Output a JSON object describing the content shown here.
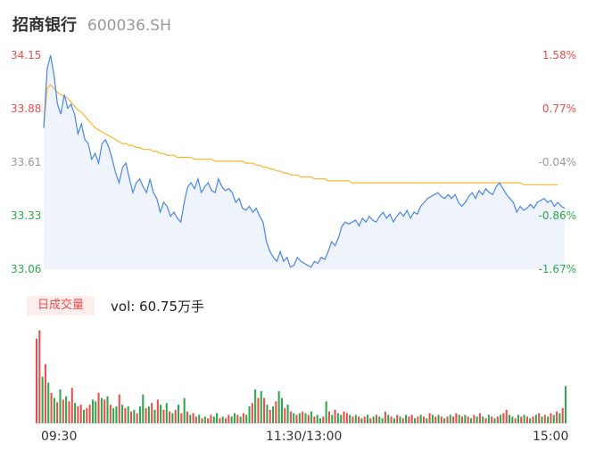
{
  "header": {
    "name": "招商银行",
    "code": "600036.SH"
  },
  "price_labels": [
    "34.15",
    "33.88",
    "33.61",
    "33.33",
    "33.06"
  ],
  "pct_labels": [
    "1.58%",
    "0.77%",
    "-0.04%",
    "-0.86%",
    "-1.67%"
  ],
  "volume": {
    "tag": "日成交量",
    "text": "vol: 60.75万手"
  },
  "time_labels": [
    "09:30",
    "11:30/13:00",
    "15:00"
  ],
  "colors": {
    "price_line": "#4a86e8",
    "avg_line": "#f5b82e",
    "up": "#e94e4e",
    "down": "#2ea84a",
    "flat": "#999999",
    "fill": "#eef3fc"
  },
  "chart_data": [
    {
      "type": "line",
      "title": "",
      "x_range": [
        "09:30",
        "15:00"
      ],
      "ylim": [
        33.06,
        34.15
      ],
      "y2lim": [
        -1.67,
        1.58
      ],
      "y2unit": "%",
      "series": [
        {
          "values": [
            33.78,
            34.08,
            34.15,
            34.05,
            33.9,
            33.85,
            33.95,
            33.88,
            33.9,
            33.85,
            33.75,
            33.8,
            33.72,
            33.7,
            33.62,
            33.65,
            33.6,
            33.7,
            33.72,
            33.68,
            33.62,
            33.55,
            33.5,
            33.58,
            33.6,
            33.52,
            33.45,
            33.5,
            33.52,
            33.48,
            33.45,
            33.52,
            33.45,
            33.42,
            33.35,
            33.4,
            33.38,
            33.33,
            33.35,
            33.32,
            33.3,
            33.4,
            33.48,
            33.5,
            33.47,
            33.52,
            33.45,
            33.48,
            33.5,
            33.46,
            33.45,
            33.52,
            33.48,
            33.46,
            33.47,
            33.45,
            33.4,
            33.42,
            33.37,
            33.36,
            33.38,
            33.35,
            33.37,
            33.33,
            33.3,
            33.2,
            33.15,
            33.12,
            33.1,
            33.15,
            33.1,
            33.12,
            33.07,
            33.08,
            33.12,
            33.1,
            33.09,
            33.08,
            33.07,
            33.1,
            33.09,
            33.12,
            33.11,
            33.15,
            33.2,
            33.18,
            33.22,
            33.28,
            33.3,
            33.29,
            33.3,
            33.31,
            33.28,
            33.32,
            33.3,
            33.33,
            33.31,
            33.3,
            33.33,
            33.35,
            33.32,
            33.34,
            33.3,
            33.33,
            33.35,
            33.33,
            33.36,
            33.32,
            33.35,
            33.34,
            33.38,
            33.4,
            33.42,
            33.43,
            33.44,
            33.45,
            33.43,
            33.42,
            33.44,
            33.42,
            33.44,
            33.4,
            33.38,
            33.4,
            33.43,
            33.45,
            33.42,
            33.46,
            33.44,
            33.47,
            33.45,
            33.44,
            33.48,
            33.5,
            33.47,
            33.44,
            33.42,
            33.4,
            33.35,
            33.38,
            33.36,
            33.37,
            33.39,
            33.37,
            33.4,
            33.41,
            33.42,
            33.4,
            33.41,
            33.38,
            33.4,
            33.38,
            33.37
          ]
        },
        {
          "values": [
            33.78,
            33.98,
            34.0,
            33.98,
            33.96,
            33.95,
            33.94,
            33.93,
            33.91,
            33.89,
            33.87,
            33.86,
            33.84,
            33.82,
            33.8,
            33.78,
            33.77,
            33.76,
            33.75,
            33.74,
            33.73,
            33.72,
            33.71,
            33.7,
            33.7,
            33.69,
            33.69,
            33.68,
            33.68,
            33.67,
            33.67,
            33.67,
            33.66,
            33.66,
            33.65,
            33.65,
            33.64,
            33.64,
            33.64,
            33.63,
            33.63,
            33.63,
            33.63,
            33.63,
            33.62,
            33.62,
            33.62,
            33.62,
            33.62,
            33.62,
            33.61,
            33.61,
            33.61,
            33.61,
            33.61,
            33.61,
            33.61,
            33.61,
            33.61,
            33.6,
            33.6,
            33.6,
            33.59,
            33.59,
            33.58,
            33.58,
            33.57,
            33.57,
            33.56,
            33.56,
            33.55,
            33.55,
            33.54,
            33.54,
            33.54,
            33.53,
            33.53,
            33.53,
            33.53,
            33.52,
            33.52,
            33.52,
            33.52,
            33.51,
            33.51,
            33.51,
            33.51,
            33.51,
            33.51,
            33.51,
            33.5,
            33.5,
            33.5,
            33.5,
            33.5,
            33.5,
            33.5,
            33.5,
            33.5,
            33.5,
            33.5,
            33.5,
            33.5,
            33.5,
            33.5,
            33.5,
            33.5,
            33.5,
            33.5,
            33.5,
            33.5,
            33.5,
            33.5,
            33.5,
            33.5,
            33.5,
            33.5,
            33.5,
            33.5,
            33.5,
            33.5,
            33.5,
            33.5,
            33.5,
            33.5,
            33.5,
            33.5,
            33.5,
            33.5,
            33.5,
            33.5,
            33.5,
            33.5,
            33.5,
            33.5,
            33.5,
            33.5,
            33.5,
            33.5,
            33.5,
            33.49,
            33.49,
            33.49,
            33.49,
            33.49,
            33.49,
            33.49,
            33.49,
            33.49,
            33.49,
            33.49
          ]
        }
      ]
    },
    {
      "type": "bar",
      "title": "",
      "unit": "万手",
      "bars": [
        [
          1.0,
          "up"
        ],
        [
          1.1,
          "up"
        ],
        [
          0.55,
          "down"
        ],
        [
          0.7,
          "up"
        ],
        [
          0.48,
          "down"
        ],
        [
          0.36,
          "up"
        ],
        [
          0.3,
          "down"
        ],
        [
          0.25,
          "up"
        ],
        [
          0.4,
          "down"
        ],
        [
          0.28,
          "up"
        ],
        [
          0.32,
          "down"
        ],
        [
          0.26,
          "up"
        ],
        [
          0.42,
          "up"
        ],
        [
          0.24,
          "down"
        ],
        [
          0.2,
          "up"
        ],
        [
          0.22,
          "up"
        ],
        [
          0.16,
          "down"
        ],
        [
          0.18,
          "up"
        ],
        [
          0.22,
          "up"
        ],
        [
          0.28,
          "down"
        ],
        [
          0.26,
          "down"
        ],
        [
          0.36,
          "up"
        ],
        [
          0.3,
          "down"
        ],
        [
          0.28,
          "up"
        ],
        [
          0.32,
          "down"
        ],
        [
          0.22,
          "up"
        ],
        [
          0.18,
          "down"
        ],
        [
          0.2,
          "down"
        ],
        [
          0.34,
          "up"
        ],
        [
          0.22,
          "down"
        ],
        [
          0.18,
          "up"
        ],
        [
          0.2,
          "down"
        ],
        [
          0.14,
          "up"
        ],
        [
          0.16,
          "down"
        ],
        [
          0.12,
          "up"
        ],
        [
          0.2,
          "down"
        ],
        [
          0.34,
          "down"
        ],
        [
          0.18,
          "up"
        ],
        [
          0.2,
          "down"
        ],
        [
          0.24,
          "up"
        ],
        [
          0.16,
          "down"
        ],
        [
          0.28,
          "up"
        ],
        [
          0.22,
          "down"
        ],
        [
          0.16,
          "up"
        ],
        [
          0.24,
          "down"
        ],
        [
          0.14,
          "up"
        ],
        [
          0.12,
          "down"
        ],
        [
          0.16,
          "up"
        ],
        [
          0.22,
          "down"
        ],
        [
          0.12,
          "up"
        ],
        [
          0.3,
          "down"
        ],
        [
          0.14,
          "up"
        ],
        [
          0.1,
          "down"
        ],
        [
          0.12,
          "up"
        ],
        [
          0.08,
          "up"
        ],
        [
          0.1,
          "down"
        ],
        [
          0.06,
          "up"
        ],
        [
          0.08,
          "down"
        ],
        [
          0.06,
          "up"
        ],
        [
          0.1,
          "up"
        ],
        [
          0.08,
          "down"
        ],
        [
          0.12,
          "down"
        ],
        [
          0.06,
          "up"
        ],
        [
          0.08,
          "down"
        ],
        [
          0.06,
          "up"
        ],
        [
          0.1,
          "up"
        ],
        [
          0.08,
          "down"
        ],
        [
          0.12,
          "down"
        ],
        [
          0.1,
          "up"
        ],
        [
          0.08,
          "down"
        ],
        [
          0.12,
          "up"
        ],
        [
          0.1,
          "down"
        ],
        [
          0.2,
          "down"
        ],
        [
          0.24,
          "up"
        ],
        [
          0.4,
          "down"
        ],
        [
          0.3,
          "up"
        ],
        [
          0.38,
          "down"
        ],
        [
          0.3,
          "up"
        ],
        [
          0.22,
          "down"
        ],
        [
          0.16,
          "up"
        ],
        [
          0.2,
          "down"
        ],
        [
          0.26,
          "up"
        ],
        [
          0.38,
          "down"
        ],
        [
          0.3,
          "down"
        ],
        [
          0.18,
          "up"
        ],
        [
          0.22,
          "down"
        ],
        [
          0.14,
          "up"
        ],
        [
          0.12,
          "down"
        ],
        [
          0.1,
          "up"
        ],
        [
          0.12,
          "down"
        ],
        [
          0.14,
          "up"
        ],
        [
          0.12,
          "down"
        ],
        [
          0.1,
          "up"
        ],
        [
          0.14,
          "down"
        ],
        [
          0.08,
          "up"
        ],
        [
          0.1,
          "down"
        ],
        [
          0.06,
          "down"
        ],
        [
          0.08,
          "up"
        ],
        [
          0.26,
          "down"
        ],
        [
          0.14,
          "up"
        ],
        [
          0.1,
          "down"
        ],
        [
          0.16,
          "up"
        ],
        [
          0.12,
          "down"
        ],
        [
          0.1,
          "down"
        ],
        [
          0.14,
          "up"
        ],
        [
          0.12,
          "up"
        ],
        [
          0.1,
          "down"
        ],
        [
          0.08,
          "up"
        ],
        [
          0.1,
          "down"
        ],
        [
          0.08,
          "up"
        ],
        [
          0.06,
          "down"
        ],
        [
          0.08,
          "up"
        ],
        [
          0.1,
          "down"
        ],
        [
          0.06,
          "up"
        ],
        [
          0.08,
          "down"
        ],
        [
          0.1,
          "up"
        ],
        [
          0.08,
          "down"
        ],
        [
          0.06,
          "down"
        ],
        [
          0.14,
          "up"
        ],
        [
          0.1,
          "down"
        ],
        [
          0.08,
          "up"
        ],
        [
          0.06,
          "down"
        ],
        [
          0.1,
          "up"
        ],
        [
          0.08,
          "down"
        ],
        [
          0.06,
          "up"
        ],
        [
          0.1,
          "down"
        ],
        [
          0.08,
          "up"
        ],
        [
          0.1,
          "up"
        ],
        [
          0.06,
          "down"
        ],
        [
          0.08,
          "up"
        ],
        [
          0.1,
          "down"
        ],
        [
          0.08,
          "up"
        ],
        [
          0.06,
          "down"
        ],
        [
          0.12,
          "up"
        ],
        [
          0.1,
          "down"
        ],
        [
          0.08,
          "up"
        ],
        [
          0.1,
          "down"
        ],
        [
          0.08,
          "up"
        ],
        [
          0.06,
          "down"
        ],
        [
          0.08,
          "up"
        ],
        [
          0.1,
          "down"
        ],
        [
          0.08,
          "up"
        ],
        [
          0.12,
          "up"
        ],
        [
          0.1,
          "down"
        ],
        [
          0.08,
          "up"
        ],
        [
          0.1,
          "down"
        ],
        [
          0.08,
          "up"
        ],
        [
          0.06,
          "down"
        ],
        [
          0.1,
          "up"
        ],
        [
          0.08,
          "down"
        ],
        [
          0.12,
          "up"
        ],
        [
          0.08,
          "down"
        ],
        [
          0.06,
          "up"
        ],
        [
          0.1,
          "down"
        ],
        [
          0.08,
          "up"
        ],
        [
          0.06,
          "down"
        ],
        [
          0.08,
          "up"
        ],
        [
          0.1,
          "down"
        ],
        [
          0.12,
          "up"
        ],
        [
          0.16,
          "up"
        ],
        [
          0.1,
          "down"
        ],
        [
          0.08,
          "down"
        ],
        [
          0.06,
          "up"
        ],
        [
          0.1,
          "down"
        ],
        [
          0.08,
          "up"
        ],
        [
          0.1,
          "down"
        ],
        [
          0.08,
          "up"
        ],
        [
          0.06,
          "down"
        ],
        [
          0.08,
          "up"
        ],
        [
          0.1,
          "down"
        ],
        [
          0.12,
          "up"
        ],
        [
          0.08,
          "down"
        ],
        [
          0.1,
          "up"
        ],
        [
          0.08,
          "down"
        ],
        [
          0.12,
          "up"
        ],
        [
          0.1,
          "down"
        ],
        [
          0.14,
          "up"
        ],
        [
          0.12,
          "down"
        ],
        [
          0.18,
          "up"
        ],
        [
          0.44,
          "down"
        ]
      ]
    }
  ]
}
